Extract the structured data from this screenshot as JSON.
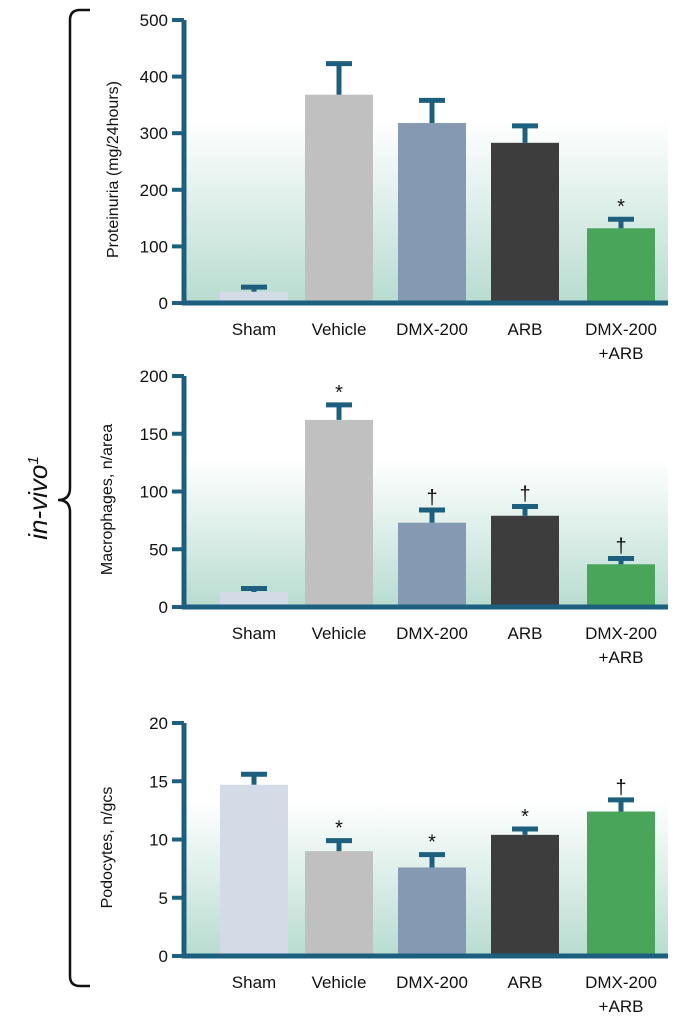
{
  "side_label": {
    "text": "in-vivo",
    "superscript": "1"
  },
  "colors": {
    "axis": "#1d5f7e",
    "error_bar": "#1d5f7e",
    "background_gradient_top": "#ffffff",
    "background_gradient_bottom": "#b8dccf",
    "Sham": "#d3dbe6",
    "Vehicle": "#c0c0c0",
    "DMX-200": "#8599b2",
    "ARB": "#3d3d3d",
    "DMX-200+ARB": "#48a55a"
  },
  "chart_data": [
    {
      "type": "bar",
      "ylabel": "Proteinuria (mg/24hours)",
      "ylim": [
        0,
        500
      ],
      "yticks": [
        "0",
        "100",
        "200",
        "300",
        "400",
        "500"
      ],
      "categories": [
        {
          "line1": "Sham",
          "line2": ""
        },
        {
          "line1": "Vehicle",
          "line2": ""
        },
        {
          "line1": "DMX-200",
          "line2": ""
        },
        {
          "line1": "ARB",
          "line2": ""
        },
        {
          "line1": "DMX-200",
          "line2": "+ARB"
        }
      ],
      "values": [
        20,
        368,
        318,
        283,
        132
      ],
      "errors": [
        8,
        55,
        40,
        30,
        16
      ],
      "annotations": [
        "",
        "",
        "",
        "",
        "*"
      ],
      "grid": false
    },
    {
      "type": "bar",
      "ylabel": "Macrophages, n/area",
      "ylim": [
        0,
        200
      ],
      "yticks": [
        "0",
        "50",
        "100",
        "150",
        "200"
      ],
      "categories": [
        {
          "line1": "Sham",
          "line2": ""
        },
        {
          "line1": "Vehicle",
          "line2": ""
        },
        {
          "line1": "DMX-200",
          "line2": ""
        },
        {
          "line1": "ARB",
          "line2": ""
        },
        {
          "line1": "DMX-200",
          "line2": "+ARB"
        }
      ],
      "values": [
        13,
        162,
        73,
        79,
        37
      ],
      "errors": [
        3,
        13,
        11,
        8,
        5
      ],
      "annotations": [
        "",
        "*",
        "†",
        "†",
        "†"
      ],
      "grid": false
    },
    {
      "type": "bar",
      "ylabel": "Podocytes, n/gcs",
      "ylim": [
        0,
        20
      ],
      "yticks": [
        "0",
        "5",
        "10",
        "15",
        "20"
      ],
      "categories": [
        {
          "line1": "Sham",
          "line2": ""
        },
        {
          "line1": "Vehicle",
          "line2": ""
        },
        {
          "line1": "DMX-200",
          "line2": ""
        },
        {
          "line1": "ARB",
          "line2": ""
        },
        {
          "line1": "DMX-200",
          "line2": "+ARB"
        }
      ],
      "values": [
        14.7,
        9.0,
        7.6,
        10.4,
        12.4
      ],
      "errors": [
        0.9,
        0.9,
        1.1,
        0.5,
        1.0
      ],
      "annotations": [
        "",
        "*",
        "*",
        "*",
        "†"
      ],
      "grid": false
    }
  ]
}
